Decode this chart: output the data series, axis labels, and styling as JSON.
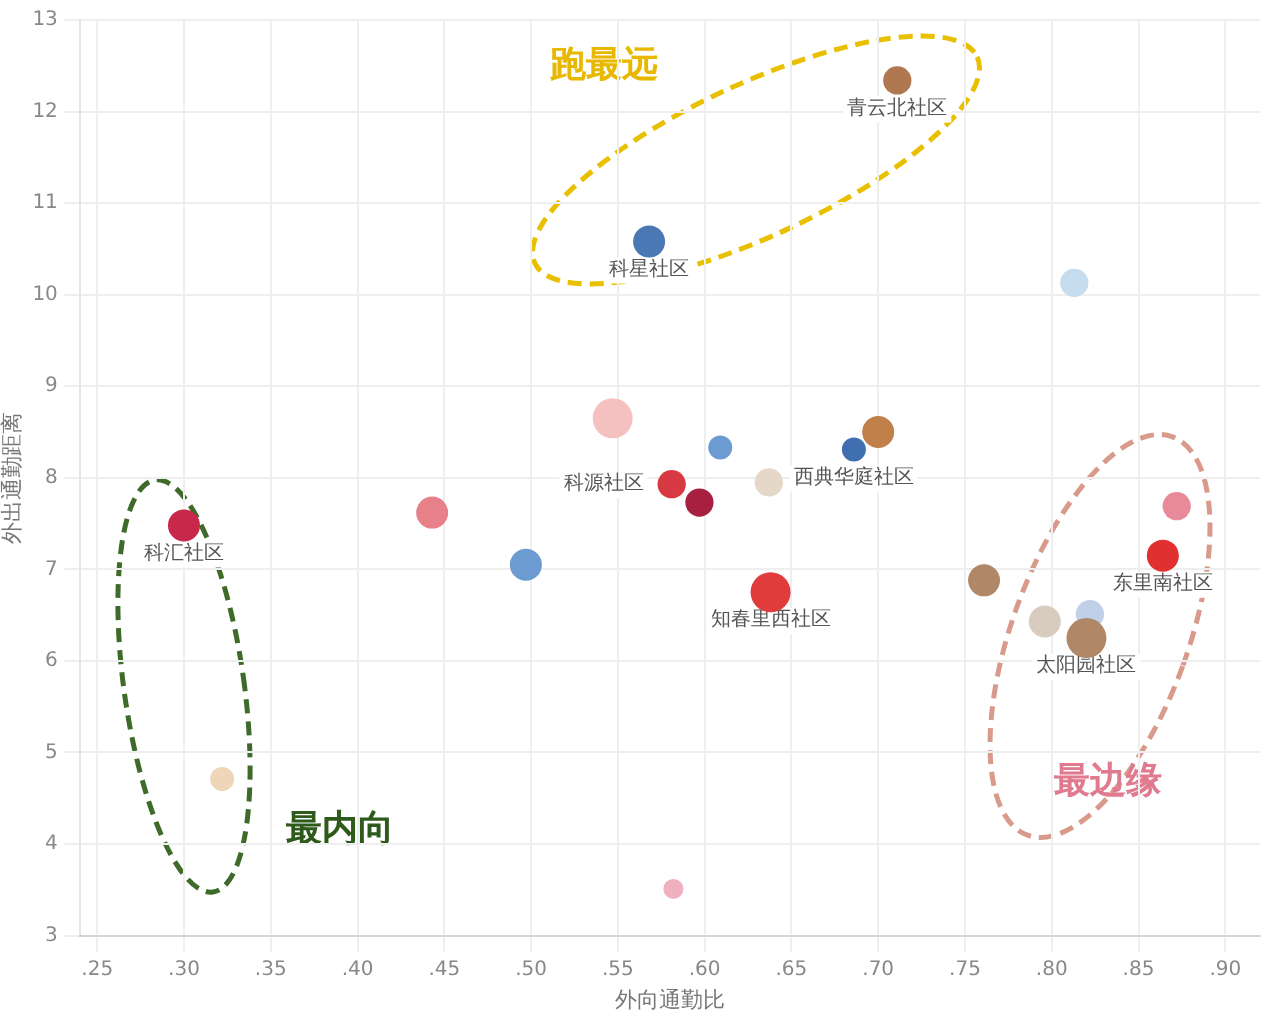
{
  "chart_data": {
    "type": "bubble",
    "xlabel": "外向通勤比",
    "ylabel": "外出通勤距离",
    "xlim": [
      0.24,
      0.92
    ],
    "ylim": [
      3,
      13
    ],
    "xticks": [
      {
        "value": 0.25,
        "label": ".25"
      },
      {
        "value": 0.3,
        "label": ".30"
      },
      {
        "value": 0.35,
        "label": ".35"
      },
      {
        "value": 0.4,
        "label": ".40"
      },
      {
        "value": 0.45,
        "label": ".45"
      },
      {
        "value": 0.5,
        "label": ".50"
      },
      {
        "value": 0.55,
        "label": ".55"
      },
      {
        "value": 0.6,
        "label": ".60"
      },
      {
        "value": 0.65,
        "label": ".65"
      },
      {
        "value": 0.7,
        "label": ".70"
      },
      {
        "value": 0.75,
        "label": ".75"
      },
      {
        "value": 0.8,
        "label": ".80"
      },
      {
        "value": 0.85,
        "label": ".85"
      },
      {
        "value": 0.9,
        "label": ".90"
      }
    ],
    "yticks": [
      3,
      4,
      5,
      6,
      7,
      8,
      9,
      10,
      11,
      12,
      13
    ],
    "grid": true,
    "legend": false,
    "series": [
      {
        "x": [
          0.3,
          0.322,
          0.443,
          0.497,
          0.568,
          0.711,
          0.813,
          0.547,
          0.609,
          0.7,
          0.686,
          0.581,
          0.597,
          0.637,
          0.638,
          0.761,
          0.796,
          0.822,
          0.82,
          0.872,
          0.864,
          0.582
        ],
        "values": [
          7.48,
          4.71,
          7.62,
          7.05,
          10.58,
          12.34,
          10.13,
          8.65,
          8.33,
          8.5,
          8.31,
          7.93,
          7.73,
          7.95,
          6.75,
          6.88,
          6.43,
          6.51,
          6.25,
          7.69,
          7.15,
          3.51
        ],
        "sizes": [
          0.64,
          0.36,
          0.64,
          0.64,
          0.64,
          0.5,
          0.5,
          1,
          0.36,
          0.64,
          0.36,
          0.5,
          0.5,
          0.5,
          1,
          0.64,
          0.64,
          0.5,
          1,
          0.5,
          0.64,
          0.25
        ],
        "colors": [
          "#c8284a",
          "#f0d6b8",
          "#e8808a",
          "#6b9bd1",
          "#4a78b5",
          "#b07850",
          "#c6ddf0",
          "#f5c0c0",
          "#6b9bd1",
          "#c0804a",
          "#3f6fb0",
          "#d83a44",
          "#a82040",
          "#e6d8c8",
          "#e03c3c",
          "#b08868",
          "#d8ccc0",
          "#c0d0e8",
          "#b08868",
          "#e88a9a",
          "#e03030",
          "#f0b0c0"
        ]
      }
    ],
    "annotations": [
      {
        "text": "科汇社区",
        "x": 0.3,
        "y": 7.48
      },
      {
        "text": "科星社区",
        "x": 0.568,
        "y": 10.58
      },
      {
        "text": "青云北社区",
        "x": 0.711,
        "y": 12.34
      },
      {
        "text": "西典华庭社区",
        "x": 0.686,
        "y": 8.31
      },
      {
        "text": "科源社区",
        "x": 0.581,
        "y": 7.93
      },
      {
        "text": "知春里西社区",
        "x": 0.638,
        "y": 6.75
      },
      {
        "text": "太阳园社区",
        "x": 0.82,
        "y": 6.25
      },
      {
        "text": "东里南社区",
        "x": 0.864,
        "y": 7.15
      },
      "跑最远",
      "最内向",
      "最边缘"
    ]
  }
}
